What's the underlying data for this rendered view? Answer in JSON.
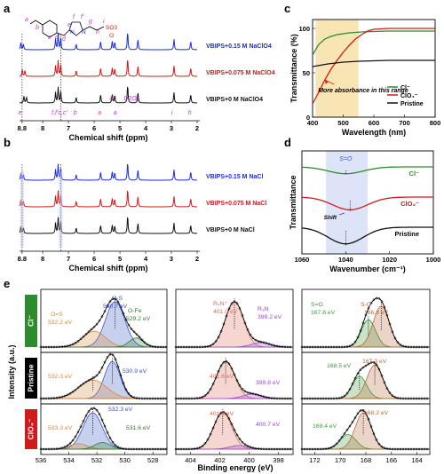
{
  "panel_labels": {
    "a": "a",
    "b": "b",
    "c": "c",
    "d": "d",
    "e": "e"
  },
  "colors": {
    "blue": "#1a2de0",
    "red": "#d11a1a",
    "black": "#111111",
    "green": "#2e8b2e",
    "purple": "#9a2fc8",
    "highlight": "#f5dfa0",
    "band": "#cfd8f5"
  },
  "chart_data": [
    {
      "id": "a",
      "type": "line",
      "xlabel": "Chemical shift (ppm)",
      "xlim": [
        8.9,
        2.0
      ],
      "xticks": [
        8.8,
        8,
        7,
        6,
        5,
        4,
        3,
        2
      ],
      "series": [
        {
          "name": "VBIPS+0.15 M NaClO4",
          "color": "#1a2de0"
        },
        {
          "name": "VBIPS+0.075 M NaClO4",
          "color": "#d11a1a"
        },
        {
          "name": "VBIPS+0 M NaClO4",
          "color": "#111111"
        }
      ],
      "peaks": [
        {
          "x": 8.85,
          "h": 0.35,
          "label": "e"
        },
        {
          "x": 8.75,
          "h": 0.3
        },
        {
          "x": 7.5,
          "h": 0.55,
          "label": "f,f'"
        },
        {
          "x": 7.4,
          "h": 0.8,
          "label": "c,c'"
        },
        {
          "x": 7.3,
          "h": 0.6
        },
        {
          "x": 6.7,
          "h": 0.3,
          "label": "b"
        },
        {
          "x": 5.75,
          "h": 0.45,
          "label": "a"
        },
        {
          "x": 5.3,
          "h": 0.45,
          "label": "d"
        },
        {
          "x": 5.2,
          "h": 0.4,
          "label": "a"
        },
        {
          "x": 4.7,
          "h": 0.95,
          "label": "D2O"
        },
        {
          "x": 4.3,
          "h": 0.55,
          "label": "g"
        },
        {
          "x": 2.9,
          "h": 0.55,
          "label": "i"
        },
        {
          "x": 2.25,
          "h": 0.45,
          "label": "h"
        }
      ],
      "peak_labels": [
        "e",
        "f,f'",
        "c,c'",
        "b",
        "a",
        "d",
        "D2O",
        "a",
        "g",
        "i",
        "h"
      ],
      "structure_labels": [
        "a",
        "b",
        "c",
        "c'",
        "d",
        "e",
        "f",
        "f'",
        "g",
        "h",
        "i",
        "N",
        "N",
        "SO3",
        "O"
      ]
    },
    {
      "id": "b",
      "type": "line",
      "xlabel": "Chemical shift (ppm)",
      "xlim": [
        8.9,
        2.0
      ],
      "xticks": [
        8.8,
        8,
        7,
        6,
        5,
        4,
        3,
        2
      ],
      "series": [
        {
          "name": "VBIPS+0.15 M NaCl",
          "color": "#1a2de0"
        },
        {
          "name": "VBIPS+0.075 M NaCl",
          "color": "#d11a1a"
        },
        {
          "name": "VBIPS+0 M NaCl",
          "color": "#111111"
        }
      ]
    },
    {
      "id": "c",
      "type": "line",
      "xlabel": "Wavelength (nm)",
      "ylabel": "Transmittance (%)",
      "xlim": [
        400,
        800
      ],
      "ylim": [
        0,
        110
      ],
      "xticks": [
        400,
        500,
        600,
        700,
        800
      ],
      "yticks": [
        0,
        50,
        100
      ],
      "highlight_range": [
        410,
        550
      ],
      "annotation": "More absorbance in this range",
      "legend_position": "bottom-right",
      "series": [
        {
          "name": "Cl⁻",
          "color": "#2e8b2e",
          "x": [
            400,
            420,
            440,
            460,
            480,
            500,
            520,
            540,
            560,
            600,
            650,
            700,
            800
          ],
          "y": [
            70,
            82,
            88,
            91,
            93,
            94,
            95,
            95.5,
            96,
            96.5,
            97,
            97,
            97
          ]
        },
        {
          "name": "ClO₄⁻",
          "color": "#d11a1a",
          "x": [
            400,
            420,
            440,
            460,
            480,
            500,
            520,
            540,
            560,
            580,
            600,
            650,
            700,
            800
          ],
          "y": [
            15,
            28,
            42,
            54,
            64,
            73,
            81,
            88,
            93,
            97,
            99,
            100,
            100,
            100
          ]
        },
        {
          "name": "Pristine",
          "color": "#111111",
          "x": [
            400,
            450,
            500,
            550,
            600,
            650,
            700,
            750,
            800
          ],
          "y": [
            57,
            60,
            62,
            63,
            63.5,
            64,
            64,
            64,
            64
          ]
        }
      ]
    },
    {
      "id": "d",
      "type": "line",
      "xlabel": "Wavenumber (cm⁻¹)",
      "ylabel": "Transmittance",
      "xlim": [
        1060,
        1000
      ],
      "xticks": [
        1060,
        1040,
        1020,
        1000
      ],
      "band_label": "S=O",
      "shift_label": "Shift",
      "band_range": [
        1049,
        1030
      ],
      "series": [
        {
          "name": "Cl⁻",
          "color": "#2e8b2e",
          "center": 1040,
          "depth": 0.35
        },
        {
          "name": "ClO₄⁻",
          "color": "#d11a1a",
          "center": 1038,
          "depth": 0.65
        },
        {
          "name": "Pristine",
          "color": "#111111",
          "center": 1040,
          "depth": 0.85
        }
      ]
    },
    {
      "id": "e",
      "type": "line",
      "ylabel": "Intensity (a.u.)",
      "xlabel": "Binding energy (eV)",
      "rows": [
        "Cl⁻",
        "Pristine",
        "ClO₄⁻"
      ],
      "segments": [
        {
          "xlim": [
            536,
            527
          ],
          "xticks": [
            536,
            534,
            532,
            530,
            528
          ]
        },
        {
          "xlim": [
            405,
            397
          ],
          "xticks": [
            404,
            402,
            400,
            398
          ]
        },
        {
          "xlim": [
            173,
            163
          ],
          "xticks": [
            172,
            170,
            168,
            166,
            164
          ]
        }
      ],
      "annotations": {
        "r0s0": [
          {
            "text": "O-S",
            "color": "#3a55c8"
          },
          {
            "text": "530.7 eV",
            "color": "#3a55c8"
          },
          {
            "text": "O=S",
            "color": "#d48a3a"
          },
          {
            "text": "532.2 eV",
            "color": "#d48a3a"
          },
          {
            "text": "O-Fe",
            "color": "#2e7d2e"
          },
          {
            "text": "529.2 eV",
            "color": "#2e7d2e"
          }
        ],
        "r0s1": [
          {
            "text": "R₄N⁺",
            "color": "#e06a5a"
          },
          {
            "text": "401.0 eV",
            "color": "#e06a5a"
          },
          {
            "text": "R₃N",
            "color": "#9a4ad0"
          },
          {
            "text": "399.2 eV",
            "color": "#9a4ad0"
          }
        ],
        "r0s2": [
          {
            "text": "S=O",
            "color": "#3a9a3a"
          },
          {
            "text": "167.8 eV",
            "color": "#3a9a3a"
          },
          {
            "text": "S-O",
            "color": "#b8683a"
          },
          {
            "text": "166.8 eV",
            "color": "#b8683a"
          }
        ],
        "r1s0": [
          {
            "text": "532.3 eV",
            "color": "#d48a3a"
          },
          {
            "text": "530.9 eV",
            "color": "#3a55c8"
          }
        ],
        "r1s1": [
          {
            "text": "401.6 eV",
            "color": "#e06a5a"
          },
          {
            "text": "399.8 eV",
            "color": "#9a4ad0"
          }
        ],
        "r1s2": [
          {
            "text": "168.5 eV",
            "color": "#3a9a3a"
          },
          {
            "text": "167.3 eV",
            "color": "#b8683a"
          }
        ],
        "r2s0": [
          {
            "text": "532.3 eV",
            "color": "#3a55c8"
          },
          {
            "text": "533.3 eV",
            "color": "#d48a3a"
          },
          {
            "text": "531.6 eV",
            "color": "#2e7d2e"
          }
        ],
        "r2s1": [
          {
            "text": "401.8 eV",
            "color": "#e06a5a"
          },
          {
            "text": "400.7 eV",
            "color": "#9a4ad0"
          }
        ],
        "r2s2": [
          {
            "text": "169.4 eV",
            "color": "#3a9a3a"
          },
          {
            "text": "168.2 eV",
            "color": "#b8683a"
          }
        ]
      },
      "fits": {
        "r0s0": [
          {
            "c": 530.7,
            "a": 1.0,
            "w": 1.1,
            "color": "#3a55c8"
          },
          {
            "c": 532.2,
            "a": 0.35,
            "w": 1.3,
            "color": "#d48a3a"
          },
          {
            "c": 529.2,
            "a": 0.2,
            "w": 0.8,
            "color": "#2e7d2e"
          }
        ],
        "r0s1": [
          {
            "c": 401.0,
            "a": 1.0,
            "w": 1.0,
            "color": "#e06a5a"
          },
          {
            "c": 399.2,
            "a": 0.1,
            "w": 1.0,
            "color": "#9a4ad0"
          }
        ],
        "r0s2": [
          {
            "c": 167.8,
            "a": 0.6,
            "w": 0.9,
            "color": "#3a9a3a"
          },
          {
            "c": 166.8,
            "a": 0.9,
            "w": 1.0,
            "color": "#b8683a"
          }
        ],
        "r1s0": [
          {
            "c": 530.9,
            "a": 1.0,
            "w": 0.9,
            "color": "#3a55c8"
          },
          {
            "c": 532.3,
            "a": 0.5,
            "w": 1.6,
            "color": "#d48a3a"
          }
        ],
        "r1s1": [
          {
            "c": 401.6,
            "a": 1.0,
            "w": 1.0,
            "color": "#e06a5a"
          },
          {
            "c": 399.8,
            "a": 0.12,
            "w": 1.0,
            "color": "#9a4ad0"
          }
        ],
        "r1s2": [
          {
            "c": 168.5,
            "a": 0.6,
            "w": 0.9,
            "color": "#3a9a3a"
          },
          {
            "c": 167.3,
            "a": 0.9,
            "w": 1.0,
            "color": "#b8683a"
          }
        ],
        "r2s0": [
          {
            "c": 532.3,
            "a": 1.0,
            "w": 1.1,
            "color": "#3a55c8"
          },
          {
            "c": 533.3,
            "a": 0.15,
            "w": 1.0,
            "color": "#d48a3a"
          },
          {
            "c": 531.6,
            "a": 0.18,
            "w": 0.9,
            "color": "#2e7d2e"
          }
        ],
        "r2s1": [
          {
            "c": 401.8,
            "a": 1.0,
            "w": 1.0,
            "color": "#e06a5a"
          },
          {
            "c": 400.7,
            "a": 0.1,
            "w": 1.0,
            "color": "#9a4ad0"
          }
        ],
        "r2s2": [
          {
            "c": 169.4,
            "a": 0.4,
            "w": 1.0,
            "color": "#3a9a3a"
          },
          {
            "c": 168.2,
            "a": 1.0,
            "w": 1.0,
            "color": "#b8683a"
          }
        ]
      },
      "row_colors": [
        "#2e8b2e",
        "#000000",
        "#d11a1a"
      ]
    }
  ]
}
